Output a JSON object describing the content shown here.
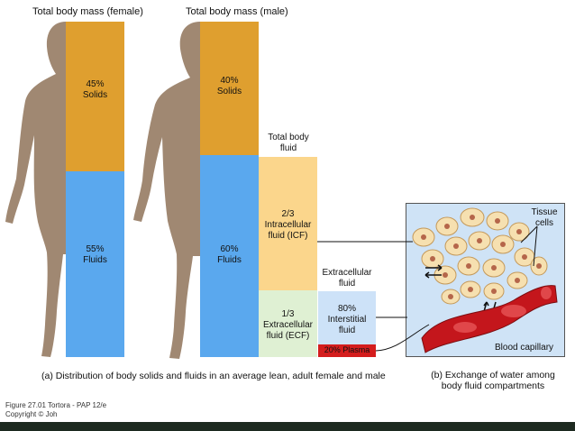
{
  "female": {
    "title": "Total body mass (female)",
    "solids": {
      "percent": 45,
      "lines": [
        "45%",
        "Solids"
      ]
    },
    "fluids": {
      "percent": 55,
      "lines": [
        "55%",
        "Fluids"
      ]
    }
  },
  "male": {
    "title": "Total body mass (male)",
    "solids": {
      "percent": 40,
      "lines": [
        "40%",
        "Solids"
      ]
    },
    "fluids": {
      "percent": 60,
      "lines": [
        "60%",
        "Fluids"
      ]
    }
  },
  "total_fluid": {
    "title_lines": [
      "Total body",
      "fluid"
    ],
    "icf": {
      "fraction": "2/3",
      "lines": [
        "2/3",
        "Intracellular",
        "fluid (ICF)"
      ]
    },
    "ecf": {
      "fraction": "1/3",
      "lines": [
        "1/3",
        "Extracellular",
        "fluid (ECF)"
      ]
    }
  },
  "extracellular": {
    "title_lines": [
      "Extracellular",
      "fluid"
    ],
    "interstitial": {
      "percent": 80,
      "lines": [
        "80%",
        "Interstitial",
        "fluid"
      ]
    },
    "plasma": {
      "percent": 20,
      "label": "20% Plasma"
    }
  },
  "panel_b": {
    "tissue_cells_lines": [
      "Tissue",
      "cells"
    ],
    "capillary_label": "Blood capillary"
  },
  "captions": {
    "a": "(a) Distribution of body solids and fluids in an average lean, adult female and male",
    "b_lines": [
      "(b) Exchange of water among",
      "body fluid compartments"
    ]
  },
  "footer": {
    "figure": "Figure 27.01  Tortora - PAP 12/e",
    "copyright": "Copyright © Joh"
  },
  "colors": {
    "solids": "#df9f2f",
    "fluids": "#5aa8ee",
    "icf": "#fbd68c",
    "ecf": "#dff0d3",
    "interstitial": "#cde2f8",
    "plasma": "#d41d1d",
    "silhouette": "#a08872",
    "panel_b_bg": "#cfe3f6",
    "capillary": "#c4161c"
  }
}
